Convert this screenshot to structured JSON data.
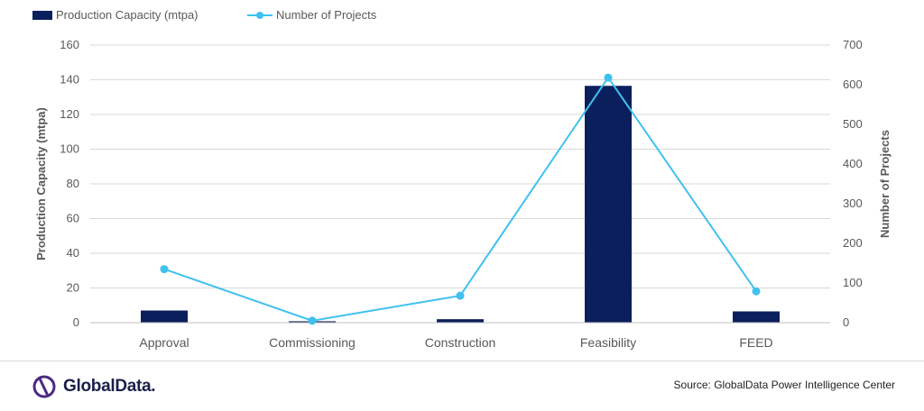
{
  "chart_data": {
    "type": "bar",
    "categories": [
      "Approval",
      "Commissioning",
      "Construction",
      "Feasibility",
      "FEED"
    ],
    "series": [
      {
        "name": "Production Capacity (mtpa)",
        "type": "bar",
        "axis": "left",
        "color": "#0b1f5c",
        "values": [
          7,
          0.8,
          2,
          136.5,
          6.5
        ]
      },
      {
        "name": "Number of Projects",
        "type": "line",
        "axis": "right",
        "color": "#3fc1ef",
        "values": [
          135,
          5,
          68,
          618,
          79
        ]
      }
    ],
    "y_left": {
      "label": "Production Capacity (mtpa)",
      "min": 0,
      "max": 160,
      "ticks": [
        0,
        20,
        40,
        60,
        80,
        100,
        120,
        140,
        160
      ]
    },
    "y_right": {
      "label": "Number of Projects",
      "min": 0,
      "max": 700,
      "ticks": [
        0,
        100,
        200,
        300,
        400,
        500,
        600,
        700
      ]
    },
    "grid": true,
    "legend_position": "top-left"
  },
  "footer": {
    "brand": "GlobalData.",
    "source": "Source:  GlobalData Power Intelligence Center"
  },
  "colors": {
    "axis_text": "#595959",
    "grid": "#d9d9d9"
  }
}
